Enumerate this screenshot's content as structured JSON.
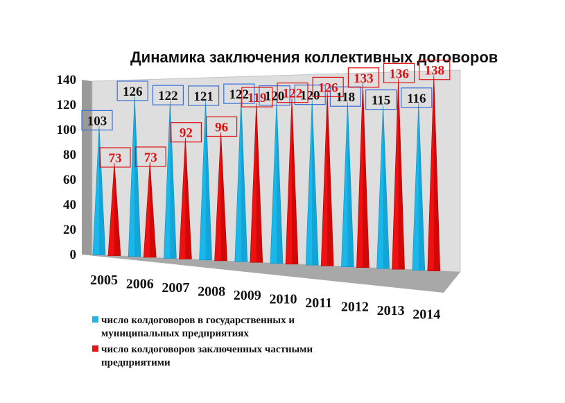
{
  "chart_data": {
    "type": "bar",
    "style": "3d-cone",
    "title": "Динамика заключения коллективных договоров",
    "xlabel": "",
    "ylabel": "",
    "ylim": [
      0,
      140
    ],
    "yticks": [
      "0",
      "20",
      "40",
      "60",
      "80",
      "100",
      "120",
      "140"
    ],
    "categories": [
      "2005",
      "2006",
      "2007",
      "2008",
      "2009",
      "2010",
      "2011",
      "2012",
      "2013",
      "2014"
    ],
    "series": [
      {
        "name": "число колдоговоров в государственных и муниципальных предприятиях",
        "legend_lines": [
          "число колдоговоров в государственных и",
          "муниципальных предприятиях"
        ],
        "color": "#1ab8ea",
        "label_color": "#111111",
        "label_box_color": "#3a6fd8",
        "values": [
          103,
          126,
          122,
          121,
          122,
          120,
          120,
          118,
          115,
          116
        ]
      },
      {
        "name": "число колдоговоров заключенных частными предприятими",
        "legend_lines": [
          "число колдоговоров заключенных частными",
          "предприятими"
        ],
        "color": "#ee1111",
        "label_color": "#e01010",
        "label_box_color": "#e01010",
        "values": [
          73,
          73,
          92,
          96,
          119,
          122,
          126,
          133,
          136,
          138
        ]
      }
    ],
    "grid": false,
    "legend_position": "bottom-left"
  }
}
